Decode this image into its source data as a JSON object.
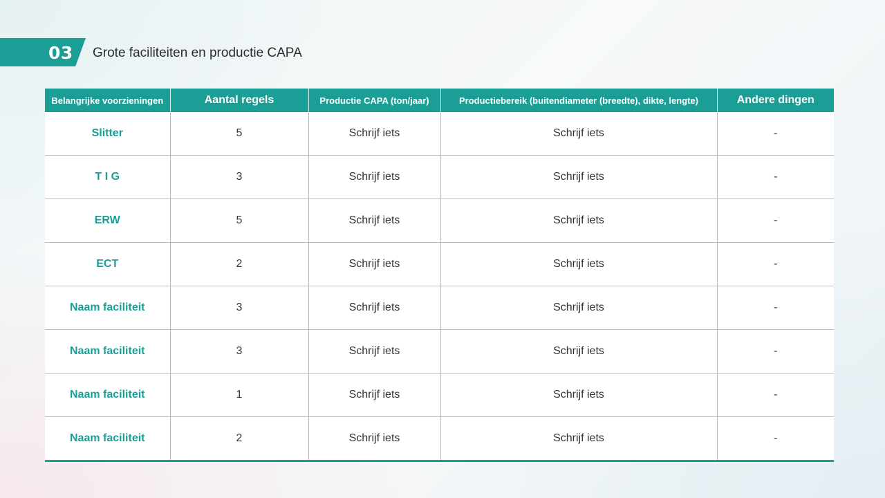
{
  "header": {
    "section_number": "03",
    "title": "Grote faciliteiten en productie CAPA",
    "accent_color": "#1a9e96"
  },
  "table": {
    "columns": [
      "Belangrijke voorzieningen",
      "Aantal regels",
      "Productie CAPA (ton/jaar)",
      "Productiebereik (buitendiameter (breedte), dikte, lengte)",
      "Andere dingen"
    ],
    "rows": [
      {
        "facility": "Slitter",
        "lines": "5",
        "capa": "Schrijf iets",
        "range": "Schrijf iets",
        "other": "-"
      },
      {
        "facility": "T I G",
        "lines": "3",
        "capa": "Schrijf iets",
        "range": "Schrijf iets",
        "other": "-"
      },
      {
        "facility": "ERW",
        "lines": "5",
        "capa": "Schrijf iets",
        "range": "Schrijf iets",
        "other": "-"
      },
      {
        "facility": "ECT",
        "lines": "2",
        "capa": "Schrijf iets",
        "range": "Schrijf iets",
        "other": "-"
      },
      {
        "facility": "Naam faciliteit",
        "lines": "3",
        "capa": "Schrijf iets",
        "range": "Schrijf iets",
        "other": "-"
      },
      {
        "facility": "Naam faciliteit",
        "lines": "3",
        "capa": "Schrijf iets",
        "range": "Schrijf iets",
        "other": "-"
      },
      {
        "facility": "Naam faciliteit",
        "lines": "1",
        "capa": "Schrijf iets",
        "range": "Schrijf iets",
        "other": "-"
      },
      {
        "facility": "Naam faciliteit",
        "lines": "2",
        "capa": "Schrijf iets",
        "range": "Schrijf iets",
        "other": "-"
      }
    ]
  }
}
